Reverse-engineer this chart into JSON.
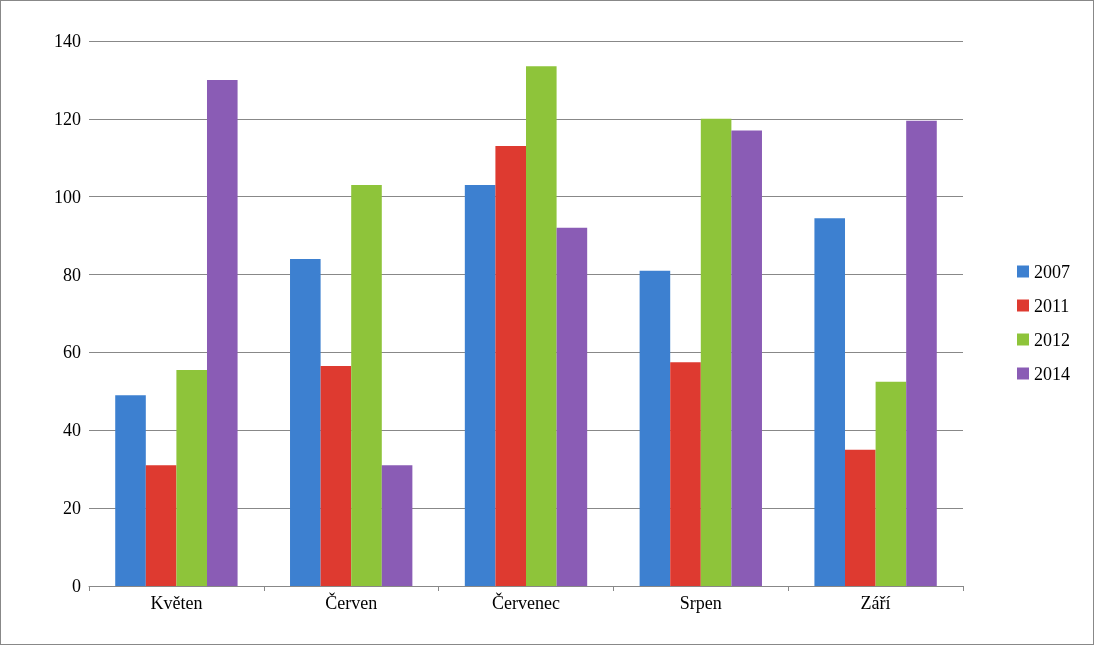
{
  "chart_data": {
    "type": "bar",
    "categories": [
      "Květen",
      "Červen",
      "Červenec",
      "Srpen",
      "Září"
    ],
    "series": [
      {
        "name": "2007",
        "color": "#3d80d0",
        "values": [
          49,
          84,
          103,
          81,
          94.5
        ]
      },
      {
        "name": "2011",
        "color": "#de3a30",
        "values": [
          31,
          56.5,
          113,
          57.5,
          35
        ]
      },
      {
        "name": "2012",
        "color": "#8ec43a",
        "values": [
          55.5,
          103,
          133.5,
          120,
          52.5
        ]
      },
      {
        "name": "2014",
        "color": "#8a5cb5",
        "values": [
          130,
          31,
          92,
          117,
          119.5
        ]
      }
    ],
    "ylim": [
      0,
      140
    ],
    "yticks": [
      0,
      20,
      40,
      60,
      80,
      100,
      120,
      140
    ],
    "grid": "y",
    "legend": "right"
  }
}
